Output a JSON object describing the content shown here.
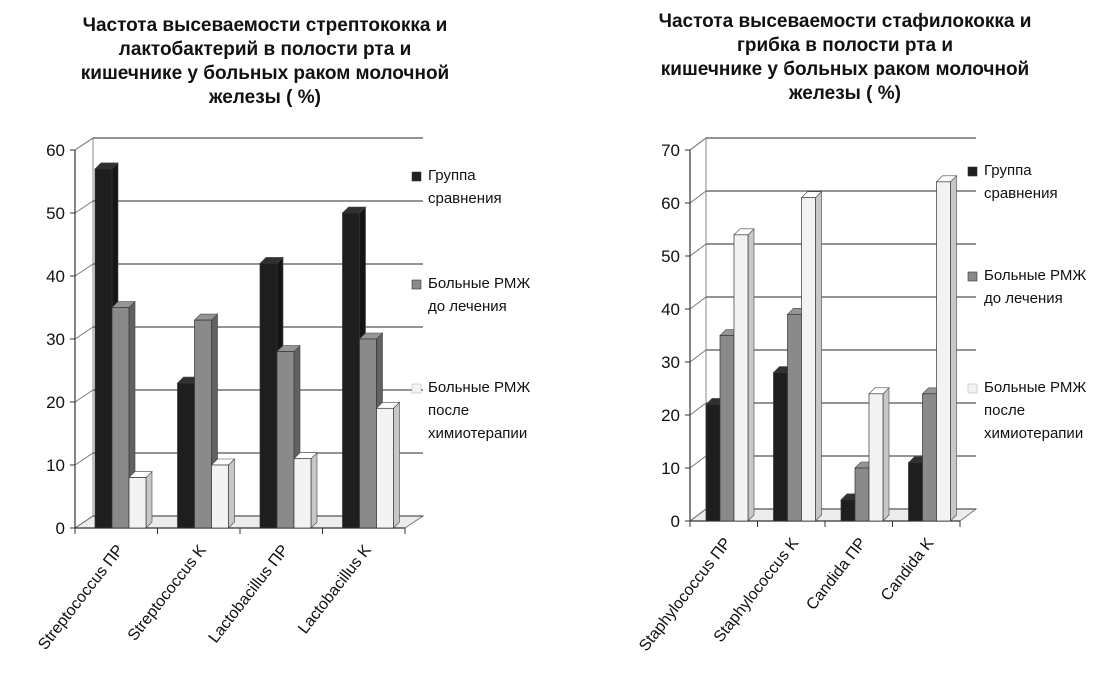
{
  "chart_data": [
    {
      "type": "bar",
      "title": "Частота высеваемости стрептококка и\nлактобактерий  в полости рта и\nкишечнике  у больных раком молочной\nжелезы ( %)",
      "categories": [
        "Streptococcus ПР",
        "Streptococcus K",
        "Lactobacillus ПР",
        "Lactobacillus  K"
      ],
      "series": [
        {
          "name": "Группа\nсравнения",
          "values": [
            57,
            23,
            42,
            50
          ],
          "color": "#1e1e1e"
        },
        {
          "name": "Больные РМЖ\nдо лечения",
          "values": [
            35,
            33,
            28,
            30
          ],
          "color": "#8a8a8a"
        },
        {
          "name": "Больные РМЖ\nпосле\nхимиотерапии",
          "values": [
            8,
            10,
            11,
            19
          ],
          "color": "#f3f3f3"
        }
      ],
      "ylim": [
        0,
        60
      ],
      "yticks": [
        "0",
        "10",
        "20",
        "30",
        "40",
        "50",
        "60"
      ],
      "xlabel": "",
      "ylabel": "",
      "grid": true,
      "legend": "right"
    },
    {
      "type": "bar",
      "title": "Частота высеваемости   стафилококка и\nгрибка в полости рта и\nкишечнике у  больных раком молочной\nжелезы ( %)",
      "categories": [
        "Staphylococcus ПР",
        "Staphylococcus K",
        "Candida ПР",
        "Candida K"
      ],
      "series": [
        {
          "name": "Группа\nсравнения",
          "values": [
            22,
            28,
            4,
            11
          ],
          "color": "#1e1e1e"
        },
        {
          "name": "Больные РМЖ\nдо лечения",
          "values": [
            35,
            39,
            10,
            24
          ],
          "color": "#8a8a8a"
        },
        {
          "name": "Больные РМЖ\nпосле\nхимиотерапии",
          "values": [
            54,
            61,
            24,
            64
          ],
          "color": "#f3f3f3"
        }
      ],
      "ylim": [
        0,
        70
      ],
      "yticks": [
        "0",
        "10",
        "20",
        "30",
        "40",
        "50",
        "60",
        "70"
      ],
      "xlabel": "",
      "ylabel": "",
      "grid": true,
      "legend": "right"
    }
  ]
}
